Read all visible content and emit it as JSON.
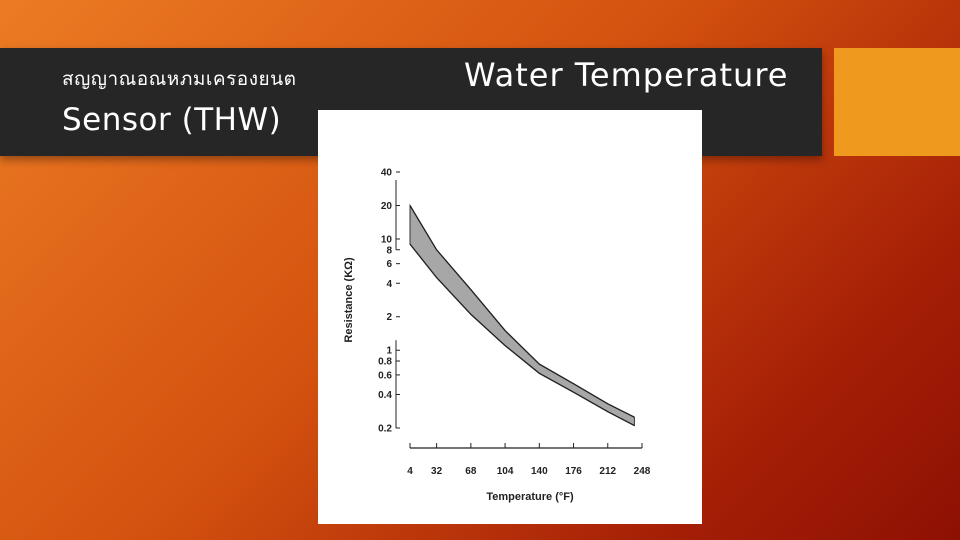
{
  "slide": {
    "title_thai": "สญญาณอณหภมเครองยนต",
    "title_right": "Water Temperature",
    "title_line2": "Sensor (THW)",
    "colors": {
      "bar": "#262626",
      "accent": "#ef9a1e",
      "band": "#8a8a8a"
    }
  },
  "chart_data": {
    "type": "area",
    "xlabel": "Temperature (°F)",
    "ylabel": "Resistance (KΩ)",
    "x_ticks": [
      4,
      32,
      68,
      104,
      140,
      176,
      212,
      248
    ],
    "y_ticks": [
      40,
      20,
      10,
      8,
      6,
      4,
      2,
      1,
      0.8,
      0.6,
      0.4,
      0.2
    ],
    "y_scale": "log",
    "xlim": [
      4,
      248
    ],
    "ylim": [
      0.2,
      40
    ],
    "series": [
      {
        "x": [
          4,
          32,
          68,
          104,
          140,
          176,
          212,
          240
        ],
        "y": [
          20,
          8,
          3.5,
          1.5,
          0.75,
          0.5,
          0.33,
          0.25
        ]
      },
      {
        "x": [
          4,
          32,
          68,
          104,
          140,
          176,
          212,
          240
        ],
        "y": [
          9,
          4.5,
          2.1,
          1.1,
          0.62,
          0.42,
          0.28,
          0.21
        ]
      }
    ]
  }
}
